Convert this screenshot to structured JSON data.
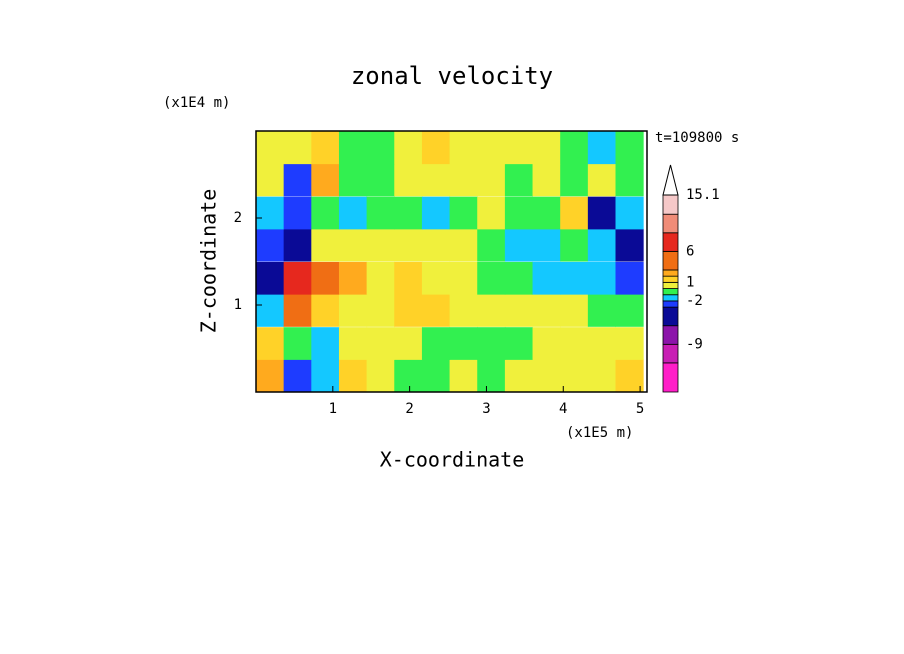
{
  "chart_data": {
    "type": "contour",
    "title": "zonal velocity",
    "x_label": "X-coordinate",
    "y_label": "Z-coordinate",
    "x_unit": "(x1E5 m)",
    "y_unit": "(x1E4 m)",
    "annotation": "t=109800 s",
    "xlim": [
      0,
      5.09
    ],
    "ylim": [
      0,
      3
    ],
    "xticks": [
      1,
      2,
      3,
      4,
      5
    ],
    "yticks": [
      1,
      2
    ],
    "x": [
      0.18,
      0.54,
      0.9,
      1.26,
      1.62,
      1.98,
      2.34,
      2.7,
      3.06,
      3.42,
      3.78,
      4.14,
      4.5,
      4.86
    ],
    "z": [
      0.19,
      0.56,
      0.94,
      1.31,
      1.69,
      2.06,
      2.44,
      2.81
    ],
    "values": [
      [
        2.5,
        -2.5,
        -1.5,
        1.5,
        0.5,
        -0.5,
        -0.5,
        0.5,
        -0.5,
        0.5,
        0.5,
        0.5,
        0.5,
        1.5
      ],
      [
        1.5,
        -0.5,
        -1.5,
        0.5,
        0.5,
        0.5,
        -0.5,
        -0.5,
        -0.5,
        -0.5,
        0.5,
        0.5,
        0.5,
        0.5
      ],
      [
        -1.5,
        4,
        1.5,
        0.5,
        0.5,
        1.5,
        1.5,
        0.5,
        0.5,
        0.5,
        0.5,
        0.5,
        -0.5,
        -0.5
      ],
      [
        -4,
        7,
        4,
        2.5,
        0.5,
        1.5,
        0.5,
        0.5,
        -0.5,
        -0.5,
        -1.5,
        -1.5,
        -1.5,
        -2.5
      ],
      [
        -2.5,
        -4,
        0.5,
        0.5,
        0.5,
        0.5,
        0.5,
        0.5,
        -0.5,
        -1.5,
        -1.5,
        -0.5,
        -1.5,
        -4
      ],
      [
        -1.5,
        -2.5,
        -0.5,
        -1.5,
        -0.5,
        -0.5,
        -1.5,
        -0.5,
        0.5,
        -0.5,
        -0.5,
        1.5,
        -4,
        -1.5
      ],
      [
        0.5,
        -2.5,
        2.5,
        -0.5,
        -0.5,
        0.5,
        0.5,
        0.5,
        0.5,
        -0.5,
        0.5,
        -0.5,
        0.5,
        -0.5
      ],
      [
        0.5,
        0.5,
        1.5,
        -0.5,
        -0.5,
        0.5,
        1.5,
        0.5,
        0.5,
        0.5,
        0.5,
        -0.5,
        -1.5,
        -0.5
      ]
    ],
    "levels": [
      -16.7,
      -12,
      -9,
      -6,
      -3,
      -2,
      -1,
      0,
      1,
      2,
      3,
      6,
      9,
      12,
      15.1
    ],
    "colors": [
      "#ff1ec8",
      "#c81eb4",
      "#8c14aa",
      "#0a0a96",
      "#1e3cff",
      "#14c8ff",
      "#32f050",
      "#f0f03c",
      "#ffd228",
      "#ffaa1e",
      "#f06e14",
      "#e6281e",
      "#f08c78",
      "#f5c8c8"
    ],
    "colorbar_ticks": [
      15.1,
      6,
      1,
      -2,
      -9
    ]
  }
}
